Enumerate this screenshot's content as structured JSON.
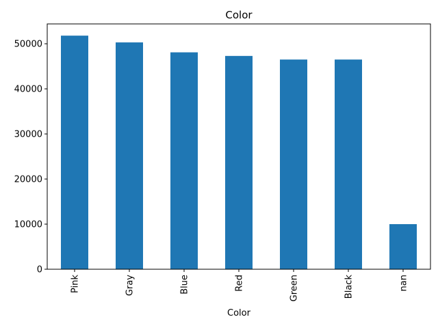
{
  "chart_data": {
    "type": "bar",
    "title": "Color",
    "xlabel": "Color",
    "ylabel": "",
    "categories": [
      "Pink",
      "Gray",
      "Blue",
      "Red",
      "Green",
      "Black",
      "nan"
    ],
    "values": [
      51800,
      50300,
      48100,
      47300,
      46500,
      46500,
      10000
    ],
    "ylim": [
      0,
      54400
    ],
    "yticks": [
      0,
      10000,
      20000,
      30000,
      40000,
      50000
    ],
    "ytick_labels": [
      "0",
      "10000",
      "20000",
      "30000",
      "40000",
      "50000"
    ],
    "bar_color": "#1f77b4",
    "grid": false,
    "legend": false
  }
}
